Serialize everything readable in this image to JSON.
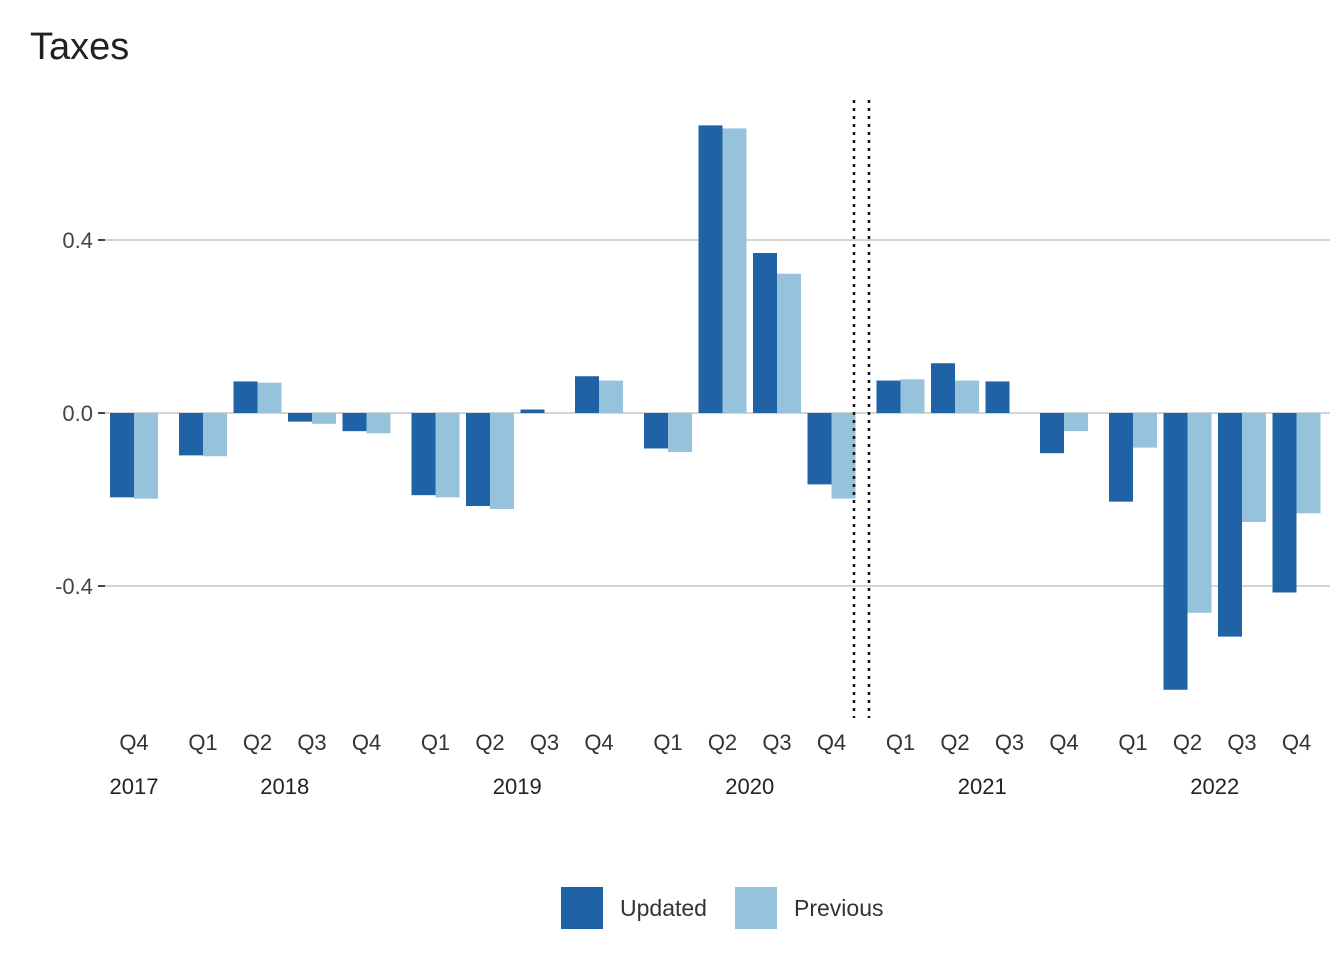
{
  "chart_data": {
    "type": "bar",
    "title": "Taxes",
    "xlabel": "",
    "ylabel": "",
    "ylim": [
      -0.67,
      0.73
    ],
    "yticks": [
      -0.4,
      0.0,
      0.4
    ],
    "ytick_labels": [
      "-0.4",
      "0.0",
      "0.4"
    ],
    "grid": true,
    "legend_position": "bottom",
    "colors": {
      "updated": "#1f63a6",
      "previous": "#96c2dc",
      "grid": "#d4d4d4",
      "divider": "#111111"
    },
    "categories": [
      {
        "quarter": "Q4",
        "year": "2017"
      },
      {
        "quarter": "Q1",
        "year": "2018"
      },
      {
        "quarter": "Q2",
        "year": "2018"
      },
      {
        "quarter": "Q3",
        "year": "2018"
      },
      {
        "quarter": "Q4",
        "year": "2018"
      },
      {
        "quarter": "Q1",
        "year": "2019"
      },
      {
        "quarter": "Q2",
        "year": "2019"
      },
      {
        "quarter": "Q3",
        "year": "2019"
      },
      {
        "quarter": "Q4",
        "year": "2019"
      },
      {
        "quarter": "Q1",
        "year": "2020"
      },
      {
        "quarter": "Q2",
        "year": "2020"
      },
      {
        "quarter": "Q3",
        "year": "2020"
      },
      {
        "quarter": "Q4",
        "year": "2020"
      },
      {
        "quarter": "Q1",
        "year": "2021"
      },
      {
        "quarter": "Q2",
        "year": "2021"
      },
      {
        "quarter": "Q3",
        "year": "2021"
      },
      {
        "quarter": "Q4",
        "year": "2021"
      },
      {
        "quarter": "Q1",
        "year": "2022"
      },
      {
        "quarter": "Q2",
        "year": "2022"
      },
      {
        "quarter": "Q3",
        "year": "2022"
      },
      {
        "quarter": "Q4",
        "year": "2022"
      }
    ],
    "years": [
      "2017",
      "2018",
      "2019",
      "2020",
      "2021",
      "2022"
    ],
    "forecast_divider_after": "Q4 2020",
    "series": [
      {
        "name": "Updated",
        "values": [
          -0.195,
          -0.098,
          0.073,
          -0.02,
          -0.042,
          -0.19,
          -0.215,
          0.008,
          0.085,
          -0.082,
          0.665,
          0.37,
          -0.165,
          0.075,
          0.115,
          0.073,
          -0.093,
          -0.205,
          -0.64,
          -0.517,
          -0.415
        ]
      },
      {
        "name": "Previous",
        "values": [
          -0.198,
          -0.1,
          0.07,
          -0.025,
          -0.047,
          -0.195,
          -0.222,
          0.0,
          0.075,
          -0.09,
          0.658,
          0.322,
          -0.198,
          0.078,
          0.075,
          0.0,
          -0.042,
          -0.08,
          -0.462,
          -0.252,
          -0.232
        ]
      }
    ]
  }
}
